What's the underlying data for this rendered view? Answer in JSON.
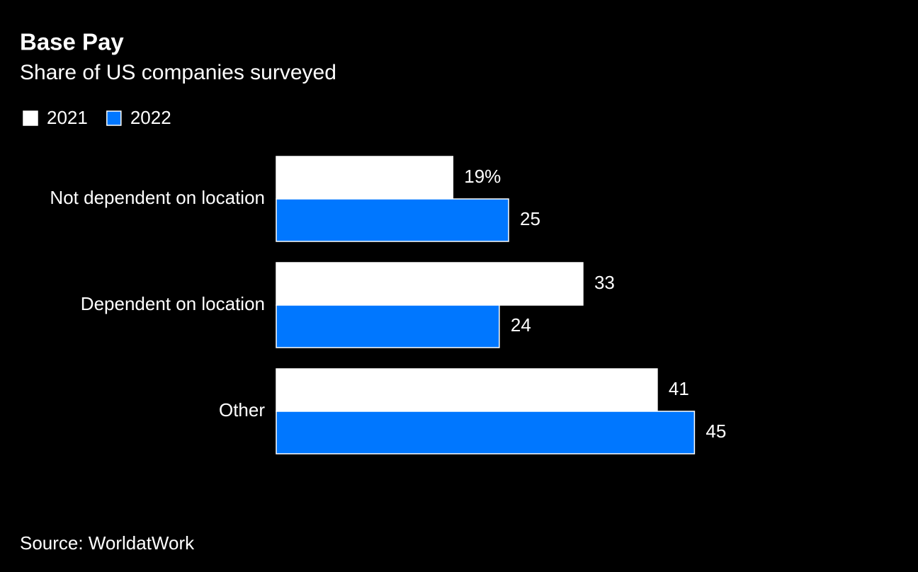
{
  "chart_data": {
    "type": "bar",
    "orientation": "horizontal",
    "title": "Base Pay",
    "subtitle": "Share of US companies surveyed",
    "categories": [
      "Not dependent on location",
      "Dependent on location",
      "Other"
    ],
    "series": [
      {
        "name": "2021",
        "color": "#ffffff",
        "values": [
          19,
          33,
          41
        ],
        "value_labels": [
          "19%",
          "33",
          "41"
        ]
      },
      {
        "name": "2022",
        "color": "#0077ff",
        "values": [
          25,
          24,
          45
        ]
      }
    ],
    "source": "Source: WorldatWork"
  }
}
